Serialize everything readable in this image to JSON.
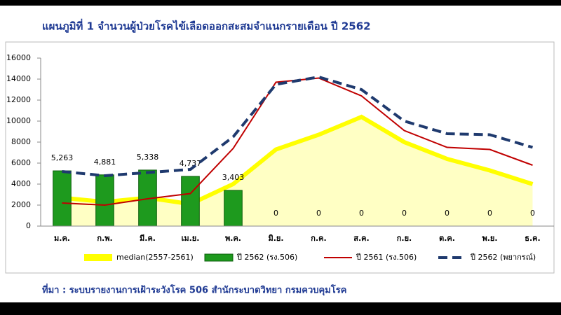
{
  "chart_data": {
    "type": "combo",
    "title": "แผนภูมิที่ 1 จำนวนผู้ป่วยโรคไข้เลือดออกสะสมจำแนกรายเดือน ปี 2562",
    "source": "ที่มา : ระบบรายงานการเฝ้าระวังโรค 506 สำนักระบาดวิทยา กรมควบคุมโรค",
    "categories": [
      "ม.ค.",
      "ก.พ.",
      "มี.ค.",
      "เม.ย.",
      "พ.ค.",
      "มิ.ย.",
      "ก.ค.",
      "ส.ค.",
      "ก.ย.",
      "ต.ค.",
      "พ.ย.",
      "ธ.ค."
    ],
    "ylim": [
      0,
      16000
    ],
    "yticks": [
      0,
      2000,
      4000,
      6000,
      8000,
      10000,
      12000,
      14000,
      16000
    ],
    "series": [
      {
        "name": "median(2557-2561)",
        "type": "area",
        "color": "#ffff00",
        "values": [
          2700,
          2300,
          2700,
          2100,
          4000,
          7300,
          8700,
          10400,
          8000,
          6400,
          5300,
          4000
        ]
      },
      {
        "name": "ปี 2562 (รง.506)",
        "type": "bar",
        "color": "#1e9a1e",
        "values": [
          5263,
          4881,
          5338,
          4737,
          3403,
          0,
          0,
          0,
          0,
          0,
          0,
          0
        ],
        "value_labels": [
          "5,263",
          "4,881",
          "5,338",
          "4,737",
          "3,403",
          "0",
          "0",
          "0",
          "0",
          "0",
          "0",
          "0"
        ]
      },
      {
        "name": "ปี 2561 (รง.506)",
        "type": "line",
        "color": "#c00000",
        "values": [
          2200,
          2000,
          2600,
          3100,
          7400,
          13700,
          14100,
          12400,
          9100,
          7500,
          7300,
          5800
        ]
      },
      {
        "name": "ปี 2562 (พยากรณ์)",
        "type": "dashed",
        "color": "#1f3a6e",
        "values": [
          5200,
          4800,
          5100,
          5400,
          8500,
          13500,
          14200,
          13000,
          10000,
          8800,
          8700,
          7500
        ]
      }
    ]
  }
}
